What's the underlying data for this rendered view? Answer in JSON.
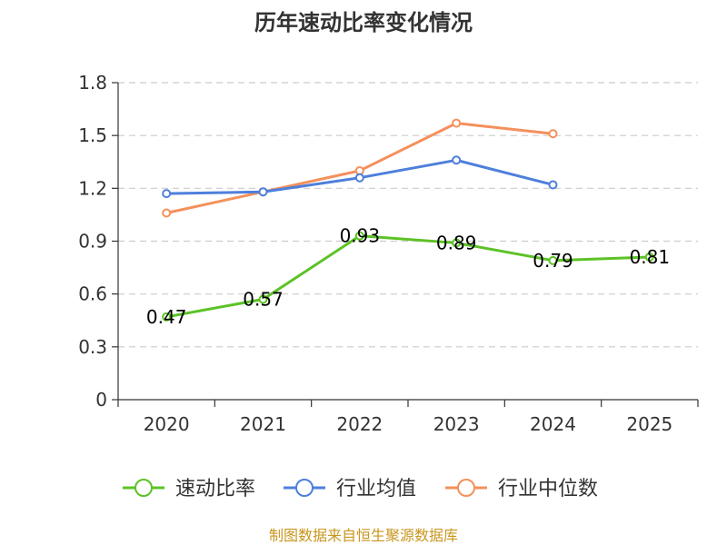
{
  "chart_data": {
    "type": "line",
    "title": "历年速动比率变化情况",
    "categories": [
      "2020",
      "2021",
      "2022",
      "2023",
      "2024",
      "2025"
    ],
    "y_ticks": [
      "0",
      "0.3",
      "0.6",
      "0.9",
      "1.2",
      "1.5",
      "1.8"
    ],
    "ylim": [
      0,
      1.8
    ],
    "grid": true,
    "legend_position": "bottom",
    "series": [
      {
        "name": "速动比率",
        "color": "#5cc226",
        "values": [
          0.47,
          0.57,
          0.93,
          0.89,
          0.79,
          0.81
        ],
        "labels": [
          "0.47",
          "0.57",
          "0.93",
          "0.89",
          "0.79",
          "0.81"
        ]
      },
      {
        "name": "行业均值",
        "color": "#4e7fdb",
        "values": [
          1.17,
          1.18,
          1.26,
          1.36,
          1.22,
          null
        ]
      },
      {
        "name": "行业中位数",
        "color": "#f4905c",
        "values": [
          1.06,
          1.18,
          1.3,
          1.57,
          1.51,
          null
        ]
      }
    ],
    "source": "制图数据来自恒生聚源数据库"
  }
}
